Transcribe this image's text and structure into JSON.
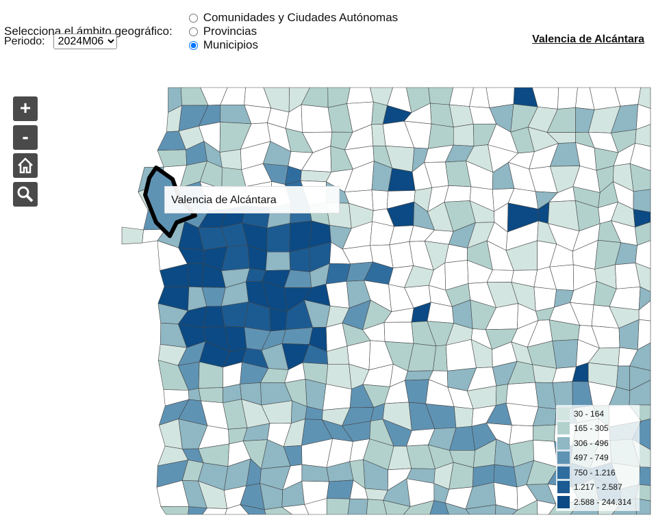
{
  "header": {
    "scope_label": "Selecciona el ámbito geográfico:",
    "options": [
      "Comunidades y Ciudades Autónomas",
      "Provincias",
      "Municipios"
    ],
    "selected_option": 2,
    "period_label": "Periodo:",
    "period_value": "2024M06",
    "selected_place": "Valencia de Alcántara"
  },
  "map": {
    "controls": [
      "+",
      "-"
    ],
    "tooltip": "Valencia de Alcántara",
    "legend": [
      {
        "range": "30 - 164",
        "color": "#d3e5e0"
      },
      {
        "range": "165 - 305",
        "color": "#b2d1cd"
      },
      {
        "range": "306 - 496",
        "color": "#8fb7c4"
      },
      {
        "range": "497 - 749",
        "color": "#5f93b4"
      },
      {
        "range": "750 - 1.216",
        "color": "#2f6d9f"
      },
      {
        "range": "1.217 - 2.587",
        "color": "#1c5b92"
      },
      {
        "range": "2.588 - 244.314",
        "color": "#0b4a84"
      }
    ]
  }
}
